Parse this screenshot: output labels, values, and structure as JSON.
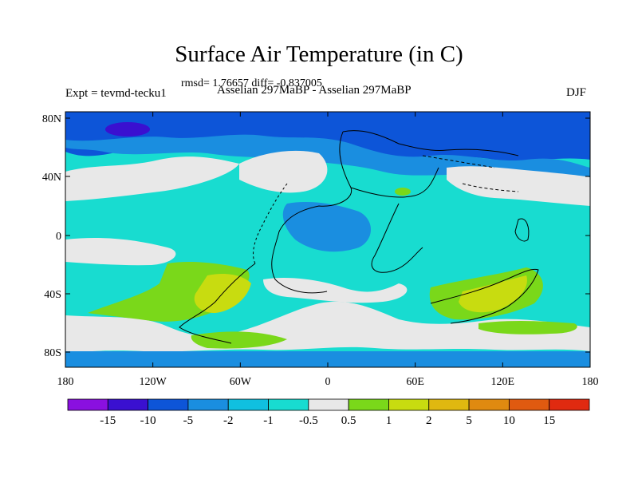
{
  "title": "Surface Air Temperature (in C)",
  "stats_line": "rmsd= 1.76657 diff= -0.837005",
  "experiment_label": "Expt = tevmd-tecku1",
  "comparison_label": "Asselian 297MaBP - Asselian 297MaBP",
  "season": "DJF",
  "lat_labels": [
    "80N",
    "40N",
    "0",
    "40S",
    "80S"
  ],
  "lon_labels": [
    "180",
    "120W",
    "60W",
    "0",
    "60E",
    "120E",
    "180"
  ],
  "colorbar": {
    "colors": [
      "#8a10e0",
      "#3a10d0",
      "#0d55d8",
      "#1a8ee0",
      "#10c0e0",
      "#18dcd0",
      "#e8e8e8",
      "#7ad81a",
      "#c8dc10",
      "#e0b810",
      "#e08a10",
      "#e05a10",
      "#e02a10"
    ],
    "labels": [
      "-15",
      "-10",
      "-5",
      "-2",
      "-1",
      "-0.5",
      "0.5",
      "1",
      "2",
      "5",
      "10",
      "15"
    ]
  },
  "map_colors": {
    "deep_neg": "#3a10d0",
    "strong_neg": "#0d55d8",
    "mid_neg": "#1a8ee0",
    "light_neg": "#18dcd0",
    "neutral": "#e8e8e8",
    "light_pos": "#7ad81a",
    "mid_pos": "#c8dc10",
    "strong_pos": "#e0b810"
  }
}
